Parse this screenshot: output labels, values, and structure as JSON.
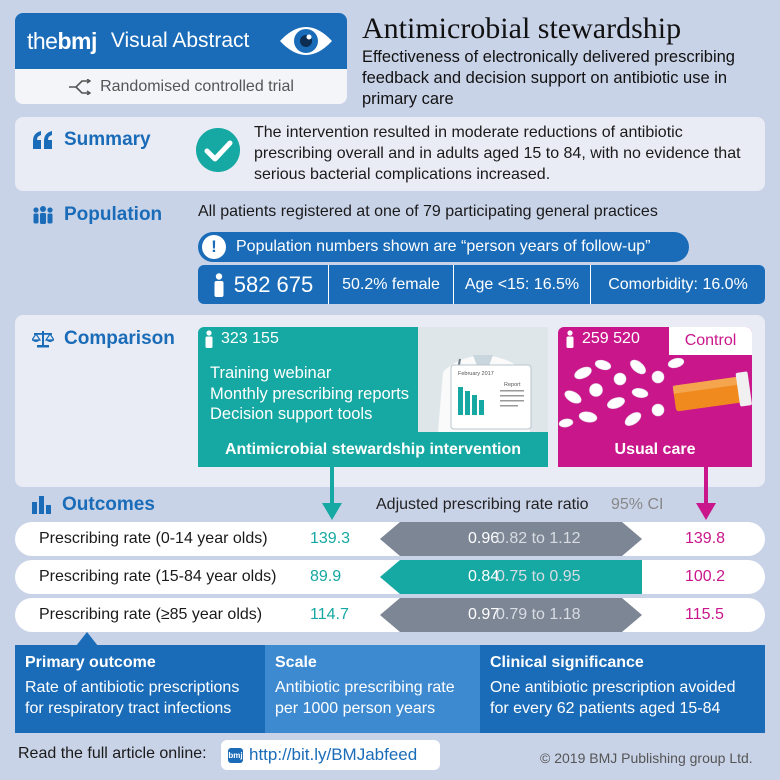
{
  "header": {
    "brand_prefix": "the",
    "brand_bold": "bmj",
    "brand_suffix": "Visual Abstract",
    "study_type": "Randomised controlled trial",
    "title": "Antimicrobial stewardship",
    "subtitle": "Effectiveness of electronically delivered prescribing feedback and decision support on antibiotic use in primary care"
  },
  "summary": {
    "heading": "Summary",
    "text": "The intervention resulted in moderate reductions of antibiotic prescribing overall and in adults aged 15 to 84, with no evidence that serious bacterial complications increased."
  },
  "population": {
    "heading": "Population",
    "text": "All patients registered at one of 79 participating general practices",
    "note": "Population numbers shown are “person years of follow-up”",
    "total": "582 675",
    "female": "50.2% female",
    "age": "Age <15: 16.5%",
    "comorbidity": "Comorbidity: 16.0%"
  },
  "comparison": {
    "heading": "Comparison",
    "intervention": {
      "count": "323 155",
      "items": [
        "Training webinar",
        "Monthly prescribing reports",
        "Decision support tools"
      ],
      "label": "Antimicrobial stewardship intervention",
      "report_month": "February 2017",
      "report_title": "Report"
    },
    "control": {
      "count": "259 520",
      "tag": "Control",
      "label": "Usual care"
    }
  },
  "outcomes": {
    "heading": "Outcomes",
    "rate_header": "Adjusted prescribing rate ratio",
    "ci_header": "95% CI",
    "rows": [
      {
        "label": "Prescribing rate (0-14 year olds)",
        "intervention": "139.3",
        "ratio": "0.96",
        "ci": "0.82 to 1.12",
        "control": "139.8",
        "significant": false
      },
      {
        "label": "Prescribing rate (15-84 year olds)",
        "intervention": "89.9",
        "ratio": "0.84",
        "ci": "0.75 to 0.95",
        "control": "100.2",
        "significant": true
      },
      {
        "label": "Prescribing rate (≥85 year olds)",
        "intervention": "114.7",
        "ratio": "0.97",
        "ci": "0.79 to 1.18",
        "control": "115.5",
        "significant": false
      }
    ]
  },
  "footer_boxes": {
    "primary": {
      "heading": "Primary outcome",
      "text": "Rate of antibiotic prescriptions for respiratory tract infections"
    },
    "scale": {
      "heading": "Scale",
      "text": "Antibiotic prescribing rate per 1000 person years"
    },
    "clinical": {
      "heading": "Clinical significance",
      "text": "One antibiotic prescription avoided for every 62 patients aged 15-84"
    }
  },
  "footer": {
    "read_label": "Read the full article online:",
    "link_icon": "bmj",
    "link": "http://bit.ly/BMJabfeed",
    "copyright": "© 2019 BMJ Publishing group Ltd."
  },
  "colors": {
    "brand_blue": "#1a6cb8",
    "teal": "#16a8a2",
    "magenta": "#c9168b",
    "band_grey": "#7d8694",
    "background": "#c9d3e8"
  }
}
